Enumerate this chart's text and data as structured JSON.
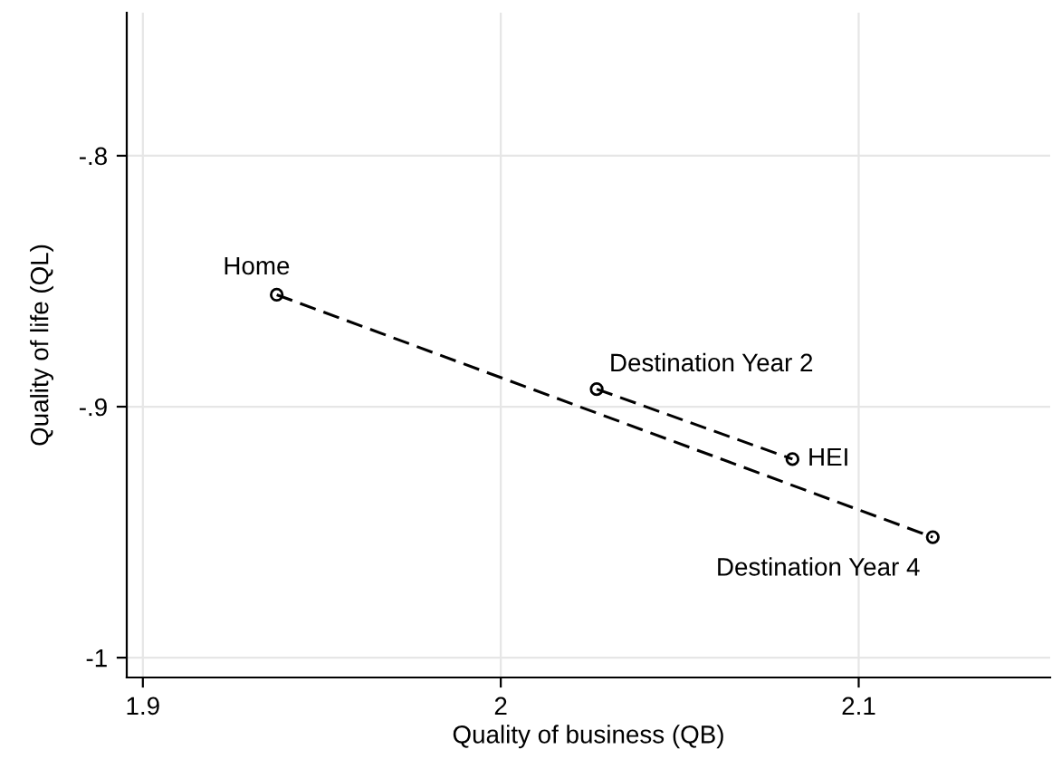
{
  "chart_data": {
    "type": "line",
    "xlabel": "Quality of business (QB)",
    "ylabel": "Quality of life (QL)",
    "series": [
      {
        "x": [
          1.9374,
          2.1207
        ],
        "values": [
          -0.8554,
          -0.952
        ],
        "color": "#000000"
      },
      {
        "x": [
          2.0268,
          2.0815
        ],
        "values": [
          -0.893,
          -0.9209
        ],
        "color": "#000000"
      }
    ],
    "annotations": [
      {
        "text": "Home",
        "x": 1.9374,
        "y": -0.8554
      },
      {
        "text": "Destination Year 2",
        "x": 2.0268,
        "y": -0.893
      },
      {
        "text": "HEI",
        "x": 2.0815,
        "y": -0.9209
      },
      {
        "text": "Destination Year 4",
        "x": 2.1207,
        "y": -0.952
      }
    ],
    "xlim": [
      1.8955,
      2.1535
    ],
    "xticks": [
      {
        "value": 1.9,
        "label": "1.9"
      },
      {
        "value": 2,
        "label": "2"
      },
      {
        "value": 2.1,
        "label": "2.1"
      }
    ],
    "ylim": [
      -1.0079,
      -0.743
    ],
    "yticks": [
      {
        "value": -1,
        "label": "-1"
      },
      {
        "value": -0.9,
        "label": "-.9"
      },
      {
        "value": -0.8,
        "label": "-.8"
      }
    ],
    "grid": true,
    "marker": "circle",
    "line_style": "dashed"
  }
}
